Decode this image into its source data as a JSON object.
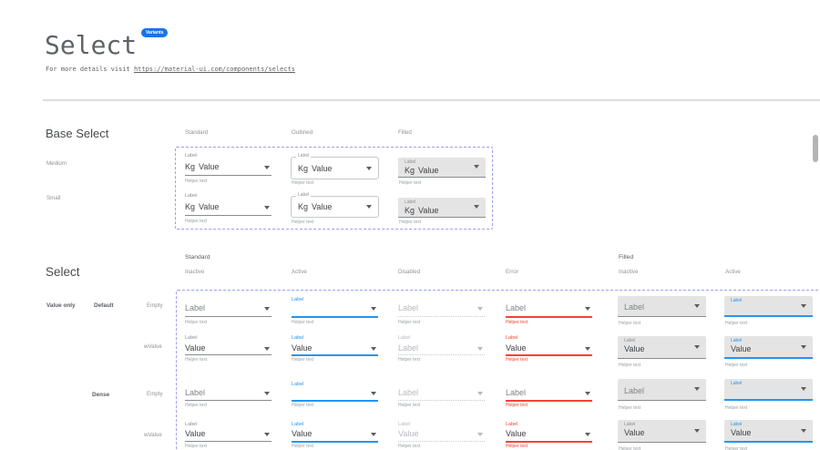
{
  "header": {
    "title": "Select",
    "badge": "Variants",
    "intro_text": "For more details visit ",
    "intro_link": "https://material-ui.com/components/selects"
  },
  "colors": {
    "accent_blue": "#2196f3",
    "error_red": "#f44336",
    "badge_blue": "#1a73e8",
    "selection_dash": "#9e9ef0"
  },
  "icons": {
    "select_arrow": "dropdown-arrow"
  },
  "base_select": {
    "heading": "Base Select",
    "columns": [
      "Standard",
      "Outlined",
      "Filled"
    ],
    "rows": [
      {
        "label": "Medium",
        "cells": [
          {
            "variant": "standard",
            "float_label": "Label",
            "prefix": "Kg",
            "value": "Value",
            "helper": "Helper text"
          },
          {
            "variant": "outlined",
            "float_label": "Label",
            "prefix": "Kg",
            "value": "Value",
            "helper": "Helper text"
          },
          {
            "variant": "filled",
            "float_label": "Label",
            "prefix": "Kg",
            "value": "Value",
            "helper": "Helper text"
          }
        ]
      },
      {
        "label": "Small",
        "cells": [
          {
            "variant": "standard",
            "float_label": "Label",
            "prefix": "Kg",
            "value": "Value",
            "helper": "Helper text"
          },
          {
            "variant": "outlined",
            "float_label": "Label",
            "prefix": "Kg",
            "value": "Value",
            "helper": "Helper text"
          },
          {
            "variant": "filled",
            "float_label": "Label",
            "prefix": "Kg",
            "value": "Value",
            "helper": "Helper text"
          }
        ]
      }
    ]
  },
  "select_spec": {
    "heading": "Select",
    "group_headers": [
      "Standard",
      "Filled"
    ],
    "columns": [
      "Inactive",
      "Active",
      "Disabled",
      "Error",
      "Inactive",
      "Active"
    ],
    "row_axis": {
      "scope": "Value only",
      "groups": [
        {
          "label": "Default",
          "rows": [
            "Empty",
            "wValue"
          ]
        },
        {
          "label": "Dense",
          "rows": [
            "Empty",
            "wValue"
          ]
        }
      ]
    },
    "rows": [
      {
        "label": "Empty",
        "cells": [
          {
            "variant": "standard",
            "state": "inactive",
            "float_label": null,
            "value": "Label",
            "value_tone": "placeholder",
            "helper": "Helper text"
          },
          {
            "variant": "standard",
            "state": "active",
            "float_label": "Label",
            "value": null,
            "helper": "Helper text"
          },
          {
            "variant": "standard",
            "state": "disabled",
            "float_label": null,
            "value": "Label",
            "value_tone": "disabled",
            "helper": "Helper text"
          },
          {
            "variant": "standard",
            "state": "error",
            "float_label": null,
            "value": "Label",
            "value_tone": "placeholder",
            "helper": "Helper text"
          },
          {
            "variant": "filled",
            "state": "inactive",
            "float_label": null,
            "value": "Label",
            "value_tone": "placeholder",
            "helper": "Helper text"
          },
          {
            "variant": "filled",
            "state": "active",
            "float_label": "Label",
            "value": null,
            "helper": "Helper text"
          }
        ]
      },
      {
        "label": "wValue",
        "cells": [
          {
            "variant": "standard",
            "state": "inactive",
            "float_label": "Label",
            "value": "Value",
            "value_tone": "dark",
            "helper": "Helper text"
          },
          {
            "variant": "standard",
            "state": "active",
            "float_label": "Label",
            "value": "Value",
            "value_tone": "dark",
            "helper": "Helper text"
          },
          {
            "variant": "standard",
            "state": "disabled",
            "float_label": "Label",
            "value": "Label",
            "value_tone": "disabled",
            "helper": "Helper text"
          },
          {
            "variant": "standard",
            "state": "error",
            "float_label": "Label",
            "value": "Value",
            "value_tone": "dark",
            "helper": "Helper text"
          },
          {
            "variant": "filled",
            "state": "inactive",
            "float_label": "Label",
            "value": "Value",
            "value_tone": "dark",
            "helper": "Helper text"
          },
          {
            "variant": "filled",
            "state": "active",
            "float_label": "Label",
            "value": "Value",
            "value_tone": "dark",
            "helper": "Helper text"
          }
        ]
      },
      {
        "label": "Empty",
        "cells": [
          {
            "variant": "standard",
            "state": "inactive",
            "float_label": null,
            "value": "Label",
            "value_tone": "placeholder",
            "helper": "Helper text"
          },
          {
            "variant": "standard",
            "state": "active",
            "float_label": "Label",
            "value": null,
            "helper": "Helper text"
          },
          {
            "variant": "standard",
            "state": "disabled",
            "float_label": null,
            "value": "Label",
            "value_tone": "disabled",
            "helper": "Helper text"
          },
          {
            "variant": "standard",
            "state": "error",
            "float_label": null,
            "value": "Label",
            "value_tone": "placeholder",
            "helper": "Helper text"
          },
          {
            "variant": "filled",
            "state": "inactive",
            "float_label": null,
            "value": "Label",
            "value_tone": "placeholder",
            "helper": "Helper text"
          },
          {
            "variant": "filled",
            "state": "active",
            "float_label": "Label",
            "value": null,
            "helper": "Helper text"
          }
        ]
      },
      {
        "label": "wValue",
        "cells": [
          {
            "variant": "standard",
            "state": "inactive",
            "float_label": "Label",
            "value": "Value",
            "value_tone": "dark",
            "helper": "Helper text"
          },
          {
            "variant": "standard",
            "state": "active",
            "float_label": "Label",
            "value": "Value",
            "value_tone": "dark",
            "helper": "Helper text"
          },
          {
            "variant": "standard",
            "state": "disabled",
            "float_label": "Label",
            "value": "Value",
            "value_tone": "disabled",
            "helper": "Helper text"
          },
          {
            "variant": "standard",
            "state": "error",
            "float_label": "Label",
            "value": "Value",
            "value_tone": "dark",
            "helper": "Helper text"
          },
          {
            "variant": "filled",
            "state": "inactive",
            "float_label": "Label",
            "value": "Value",
            "value_tone": "dark",
            "helper": "Helper text"
          },
          {
            "variant": "filled",
            "state": "active",
            "float_label": "Label",
            "value": "Value",
            "value_tone": "dark",
            "helper": "Helper text"
          }
        ]
      }
    ]
  }
}
